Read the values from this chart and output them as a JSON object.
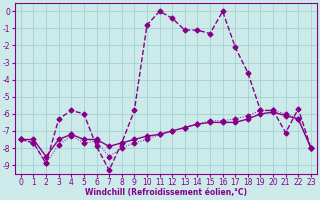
{
  "xlabel": "Windchill (Refroidissement éolien,°C)",
  "background_color": "#cceaea",
  "line_color": "#880088",
  "grid_color": "#99cccc",
  "x": [
    0,
    1,
    2,
    3,
    4,
    5,
    6,
    7,
    8,
    9,
    10,
    11,
    12,
    13,
    14,
    15,
    16,
    17,
    18,
    19,
    20,
    21,
    22,
    23
  ],
  "curve1": [
    -7.5,
    -7.7,
    -8.9,
    -6.3,
    -5.8,
    -6.0,
    -7.9,
    -9.3,
    -7.7,
    -5.8,
    -0.8,
    0.0,
    -0.4,
    -1.1,
    -1.1,
    -1.3,
    0.0,
    -2.1,
    -3.6,
    -5.8,
    -5.8,
    -7.1,
    -5.7,
    -8.0
  ],
  "curve2": [
    -7.5,
    -7.5,
    -8.5,
    -7.5,
    -7.2,
    -7.5,
    -7.5,
    -7.9,
    -7.7,
    -7.5,
    -7.3,
    -7.2,
    -7.0,
    -6.8,
    -6.6,
    -6.5,
    -6.5,
    -6.5,
    -6.3,
    -6.0,
    -5.9,
    -6.1,
    -6.3,
    -8.0
  ],
  "curve3": [
    -7.5,
    -7.7,
    -8.9,
    -7.8,
    -7.3,
    -7.7,
    -7.6,
    -8.5,
    -8.0,
    -7.7,
    -7.5,
    -7.2,
    -7.0,
    -6.8,
    -6.6,
    -6.4,
    -6.4,
    -6.3,
    -6.1,
    -5.8,
    -5.8,
    -6.0,
    -6.3,
    -8.0
  ],
  "xlim_min": -0.5,
  "xlim_max": 23.5,
  "ylim_min": -9.5,
  "ylim_max": 0.5,
  "yticks": [
    0,
    -1,
    -2,
    -3,
    -4,
    -5,
    -6,
    -7,
    -8,
    -9
  ],
  "tick_fontsize": 5.5,
  "xlabel_fontsize": 5.5,
  "linewidth": 1.0,
  "markersize": 2.5
}
